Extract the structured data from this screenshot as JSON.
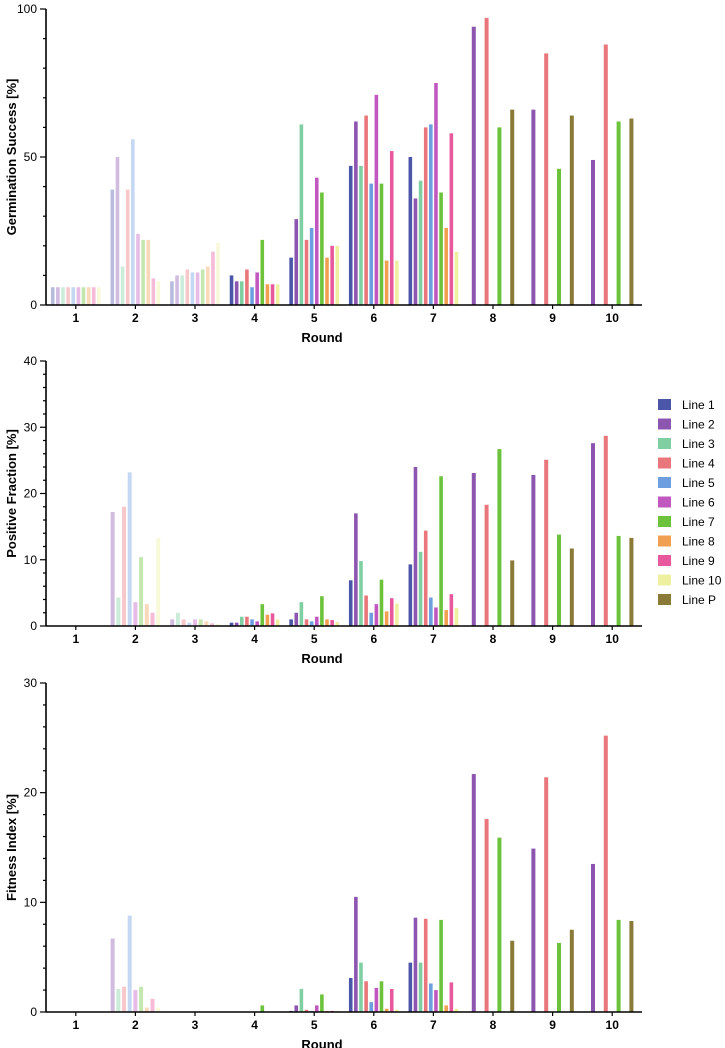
{
  "chart_data": [
    {
      "type": "bar",
      "ylabel": "Germination Success [%]",
      "xlabel": "Round",
      "ylim": [
        0,
        100
      ],
      "yticks": [
        0,
        50,
        100
      ],
      "categories": [
        "1",
        "2",
        "3",
        "4",
        "5",
        "6",
        "7",
        "8",
        "9",
        "10"
      ],
      "series": [
        {
          "name": "Line 1",
          "values": [
            6,
            39,
            8,
            10,
            16,
            47,
            50,
            null,
            null,
            null
          ]
        },
        {
          "name": "Line 2",
          "values": [
            6,
            50,
            10,
            8,
            29,
            62,
            36,
            94,
            66,
            49
          ]
        },
        {
          "name": "Line 3",
          "values": [
            6,
            13,
            10,
            8,
            61,
            47,
            42,
            null,
            null,
            null
          ]
        },
        {
          "name": "Line 4",
          "values": [
            6,
            39,
            12,
            12,
            22,
            64,
            60,
            97,
            85,
            88
          ]
        },
        {
          "name": "Line 5",
          "values": [
            6,
            56,
            11,
            6,
            26,
            41,
            61,
            null,
            null,
            null
          ]
        },
        {
          "name": "Line 6",
          "values": [
            6,
            24,
            11,
            11,
            43,
            71,
            75,
            null,
            null,
            null
          ]
        },
        {
          "name": "Line 7",
          "values": [
            6,
            22,
            12,
            22,
            38,
            41,
            38,
            60,
            46,
            62
          ]
        },
        {
          "name": "Line 8",
          "values": [
            6,
            22,
            13,
            7,
            16,
            15,
            26,
            null,
            null,
            null
          ]
        },
        {
          "name": "Line 9",
          "values": [
            6,
            9,
            18,
            7,
            20,
            52,
            58,
            null,
            null,
            null
          ]
        },
        {
          "name": "Line 10",
          "values": [
            6,
            8,
            21,
            7,
            20,
            15,
            18,
            null,
            null,
            null
          ]
        },
        {
          "name": "Line P",
          "values": [
            null,
            null,
            null,
            null,
            null,
            null,
            null,
            66,
            64,
            63
          ]
        }
      ]
    },
    {
      "type": "bar",
      "ylabel": "Positive Fraction [%]",
      "xlabel": "Round",
      "ylim": [
        0,
        40
      ],
      "yticks": [
        0,
        10,
        20,
        30,
        40
      ],
      "categories": [
        "1",
        "2",
        "3",
        "4",
        "5",
        "6",
        "7",
        "8",
        "9",
        "10"
      ],
      "series": [
        {
          "name": "Line 1",
          "values": [
            0,
            null,
            null,
            0.5,
            1.0,
            6.9,
            9.3,
            null,
            null,
            null
          ]
        },
        {
          "name": "Line 2",
          "values": [
            0,
            17.2,
            1.0,
            0.5,
            2.0,
            17.0,
            24.0,
            23.1,
            22.8,
            27.6
          ]
        },
        {
          "name": "Line 3",
          "values": [
            0,
            4.3,
            2.0,
            1.4,
            3.6,
            9.8,
            11.2,
            null,
            null,
            null
          ]
        },
        {
          "name": "Line 4",
          "values": [
            0,
            18.0,
            1.0,
            1.4,
            1.0,
            4.6,
            14.4,
            18.3,
            25.1,
            28.7
          ]
        },
        {
          "name": "Line 5",
          "values": [
            0,
            23.2,
            0.5,
            1.0,
            0.7,
            2.0,
            4.3,
            null,
            null,
            null
          ]
        },
        {
          "name": "Line 6",
          "values": [
            0,
            3.6,
            1.0,
            0.7,
            1.4,
            3.3,
            2.8,
            null,
            null,
            null
          ]
        },
        {
          "name": "Line 7",
          "values": [
            0,
            10.4,
            1.0,
            3.3,
            4.5,
            7.0,
            22.6,
            26.7,
            13.8,
            13.6
          ]
        },
        {
          "name": "Line 8",
          "values": [
            0,
            3.3,
            0.7,
            1.7,
            1.0,
            2.2,
            2.4,
            null,
            null,
            null
          ]
        },
        {
          "name": "Line 9",
          "values": [
            0,
            2.0,
            0.4,
            1.9,
            0.9,
            4.2,
            4.8,
            null,
            null,
            null
          ]
        },
        {
          "name": "Line 10",
          "values": [
            0,
            13.3,
            0.3,
            1.0,
            0.6,
            3.4,
            2.7,
            null,
            null,
            null
          ]
        },
        {
          "name": "Line P",
          "values": [
            null,
            null,
            null,
            null,
            null,
            null,
            null,
            9.9,
            11.7,
            13.3
          ]
        }
      ]
    },
    {
      "type": "bar",
      "ylabel": "Fitness Index [%]",
      "xlabel": "Round",
      "ylim": [
        0,
        30
      ],
      "yticks": [
        0,
        10,
        20,
        30
      ],
      "categories": [
        "1",
        "2",
        "3",
        "4",
        "5",
        "6",
        "7",
        "8",
        "9",
        "10"
      ],
      "series": [
        {
          "name": "Line 1",
          "values": [
            0,
            null,
            0,
            0,
            0.1,
            3.1,
            4.5,
            null,
            null,
            null
          ]
        },
        {
          "name": "Line 2",
          "values": [
            0,
            6.7,
            0,
            0,
            0.6,
            10.5,
            8.6,
            21.7,
            14.9,
            13.5
          ]
        },
        {
          "name": "Line 3",
          "values": [
            0,
            2.1,
            0,
            0,
            2.1,
            4.5,
            4.5,
            null,
            null,
            null
          ]
        },
        {
          "name": "Line 4",
          "values": [
            0,
            2.3,
            0,
            0,
            0.2,
            2.8,
            8.5,
            17.6,
            21.4,
            25.2
          ]
        },
        {
          "name": "Line 5",
          "values": [
            0,
            8.8,
            0,
            0,
            0.1,
            0.9,
            2.6,
            null,
            null,
            null
          ]
        },
        {
          "name": "Line 6",
          "values": [
            0,
            2.0,
            0,
            0,
            0.6,
            2.2,
            2.0,
            null,
            null,
            null
          ]
        },
        {
          "name": "Line 7",
          "values": [
            0,
            2.3,
            0,
            0.6,
            1.6,
            2.8,
            8.4,
            15.9,
            6.3,
            8.4
          ]
        },
        {
          "name": "Line 8",
          "values": [
            0,
            0.4,
            0,
            0,
            0.1,
            0.3,
            0.6,
            null,
            null,
            null
          ]
        },
        {
          "name": "Line 9",
          "values": [
            0,
            1.2,
            0,
            0,
            0.1,
            2.1,
            2.7,
            null,
            null,
            null
          ]
        },
        {
          "name": "Line 10",
          "values": [
            0,
            0.4,
            0,
            0,
            0.1,
            0.2,
            0.3,
            null,
            null,
            null
          ]
        },
        {
          "name": "Line P",
          "values": [
            null,
            null,
            null,
            null,
            null,
            null,
            null,
            6.5,
            7.5,
            8.3
          ]
        }
      ]
    }
  ],
  "legend": {
    "placement": "right-of-middle-chart",
    "items": [
      {
        "name": "Line 1",
        "color": "#4b56a8"
      },
      {
        "name": "Line 2",
        "color": "#8c55b0"
      },
      {
        "name": "Line 3",
        "color": "#7fcfa2"
      },
      {
        "name": "Line 4",
        "color": "#e8767a"
      },
      {
        "name": "Line 5",
        "color": "#6d9ee0"
      },
      {
        "name": "Line 6",
        "color": "#c058c0"
      },
      {
        "name": "Line 7",
        "color": "#6cc23a"
      },
      {
        "name": "Line 8",
        "color": "#f0a050"
      },
      {
        "name": "Line 9",
        "color": "#e8589c"
      },
      {
        "name": "Line 10",
        "color": "#eef0a0"
      },
      {
        "name": "Line P",
        "color": "#8a7a38"
      }
    ]
  },
  "faded_rounds": [
    "1",
    "2",
    "3"
  ]
}
